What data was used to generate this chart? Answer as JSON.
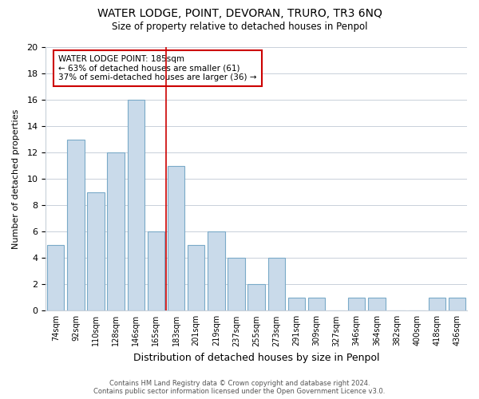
{
  "title": "WATER LODGE, POINT, DEVORAN, TRURO, TR3 6NQ",
  "subtitle": "Size of property relative to detached houses in Penpol",
  "xlabel": "Distribution of detached houses by size in Penpol",
  "ylabel": "Number of detached properties",
  "bin_labels": [
    "74sqm",
    "92sqm",
    "110sqm",
    "128sqm",
    "146sqm",
    "165sqm",
    "183sqm",
    "201sqm",
    "219sqm",
    "237sqm",
    "255sqm",
    "273sqm",
    "291sqm",
    "309sqm",
    "327sqm",
    "346sqm",
    "364sqm",
    "382sqm",
    "400sqm",
    "418sqm",
    "436sqm"
  ],
  "counts": [
    5,
    13,
    9,
    12,
    16,
    6,
    11,
    5,
    6,
    4,
    2,
    4,
    1,
    1,
    0,
    1,
    1,
    0,
    0,
    1,
    1
  ],
  "bar_color": "#c9daea",
  "bar_edge_color": "#7aaac8",
  "subject_bar_index": 6,
  "subject_line_color": "#cc0000",
  "annotation_title": "WATER LODGE POINT: 185sqm",
  "annotation_line1": "← 63% of detached houses are smaller (61)",
  "annotation_line2": "37% of semi-detached houses are larger (36) →",
  "annotation_box_edge": "#cc0000",
  "ylim": [
    0,
    20
  ],
  "yticks": [
    0,
    2,
    4,
    6,
    8,
    10,
    12,
    14,
    16,
    18,
    20
  ],
  "footer1": "Contains HM Land Registry data © Crown copyright and database right 2024.",
  "footer2": "Contains public sector information licensed under the Open Government Licence v3.0.",
  "background_color": "#ffffff",
  "grid_color": "#c8d0da"
}
